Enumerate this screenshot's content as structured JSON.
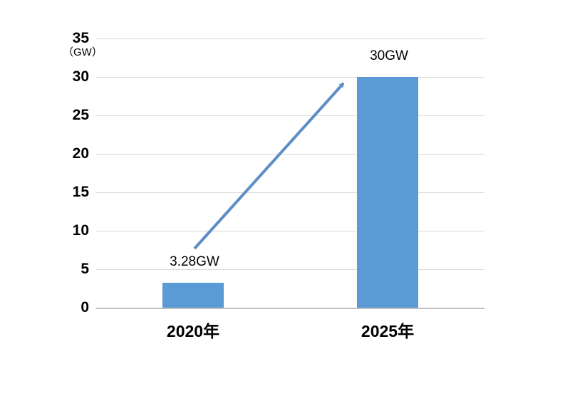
{
  "chart_data": {
    "type": "bar",
    "title": "",
    "unit_label": "（GW）",
    "categories": [
      "2020年",
      "2025年"
    ],
    "values": [
      3.28,
      30
    ],
    "data_labels": [
      "3.28GW",
      "30GW"
    ],
    "ylabel": "GW",
    "ylim": [
      0,
      35
    ],
    "yticks": [
      0,
      5,
      10,
      15,
      20,
      25,
      30,
      35
    ],
    "grid": true,
    "legend": "none",
    "bar_color": "#5b9bd5",
    "arrow_color": "#5c8ec6",
    "gridline_color": "#d9d9d9",
    "text_color": "#000000",
    "annotation": {
      "shape": "growth-arrow",
      "from_category": "2020年",
      "to_category": "2025年"
    }
  }
}
